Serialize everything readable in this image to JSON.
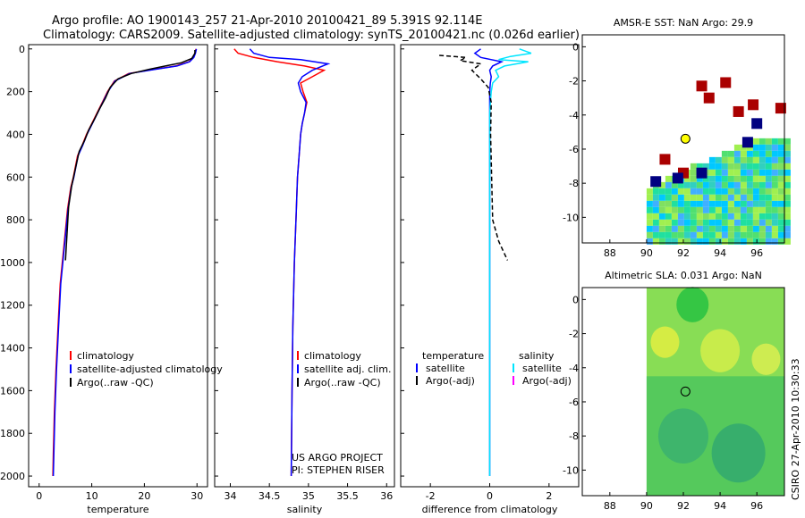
{
  "title": {
    "line1": "Argo profile: AO 1900143_257 21-Apr-2010 20100421_89 5.391S 92.114E",
    "line2": "Climatology: CARS2009. Satellite-adjusted climatology: synTS_20100421.nc (0.026d earlier)"
  },
  "credit": "CSIRO 27-Apr-2010 10:30:33",
  "project_note": [
    "US ARGO PROJECT",
    "PI: STEPHEN RISER"
  ],
  "colors": {
    "climatology": "#ff0000",
    "satellite": "#0000ff",
    "argo": "#000000",
    "sat_salinity": "#00e5ff",
    "argo_adj_salinity": "#ff00ff"
  },
  "chart_data": [
    {
      "id": "temperature",
      "type": "line",
      "xlabel": "temperature",
      "xlim": [
        -2,
        32
      ],
      "ylim": [
        2050,
        -20
      ],
      "xticks": [
        0,
        10,
        20,
        30
      ],
      "yticks": [
        0,
        200,
        400,
        600,
        800,
        1000,
        1200,
        1400,
        1600,
        1800,
        2000
      ],
      "legend": [
        "climatology",
        "satellite-adjusted climatology",
        "Argo(..raw -QC)"
      ],
      "series": [
        {
          "name": "climatology",
          "color": "#ff0000",
          "x": [
            29.8,
            29.6,
            29.3,
            28.5,
            26,
            22,
            17,
            14.3,
            13,
            12,
            11,
            10,
            9,
            8.2,
            7.3,
            6.5,
            6,
            5.4,
            4.8,
            4,
            3.6,
            3.2,
            2.9,
            2.7,
            2.6
          ],
          "y": [
            0,
            20,
            40,
            60,
            80,
            95,
            115,
            150,
            200,
            250,
            300,
            350,
            400,
            450,
            500,
            600,
            650,
            750,
            900,
            1100,
            1300,
            1500,
            1700,
            1900,
            2000
          ]
        },
        {
          "name": "satellite",
          "color": "#0000ff",
          "x": [
            29.9,
            29.7,
            29.4,
            28.6,
            26.2,
            22.2,
            17.2,
            14.4,
            13.1,
            12.1,
            11.1,
            10.1,
            9.1,
            8.3,
            7.4,
            6.6,
            6.1,
            5.5,
            4.9,
            4.1,
            3.7,
            3.3,
            3,
            2.8,
            2.7
          ],
          "y": [
            0,
            20,
            40,
            60,
            80,
            95,
            115,
            150,
            200,
            250,
            300,
            350,
            400,
            450,
            500,
            600,
            650,
            750,
            900,
            1100,
            1300,
            1500,
            1700,
            1900,
            2000
          ]
        },
        {
          "name": "argo",
          "color": "#000000",
          "x": [
            29.6,
            29.6,
            29,
            27,
            24,
            21,
            17.5,
            15,
            13.5,
            12.6,
            11.5,
            10.5,
            9.4,
            8.6,
            7.6,
            6.8,
            6.2,
            5.6,
            5
          ],
          "y": [
            5,
            20,
            45,
            65,
            80,
            95,
            115,
            140,
            180,
            230,
            280,
            330,
            380,
            430,
            480,
            570,
            640,
            740,
            990
          ]
        }
      ]
    },
    {
      "id": "salinity",
      "type": "line",
      "xlabel": "salinity",
      "xlim": [
        33.8,
        36.1
      ],
      "ylim": [
        2050,
        -20
      ],
      "xticks": [
        34,
        34.5,
        35,
        35.5,
        36
      ],
      "legend": [
        "climatology",
        "satellite adj. clim.",
        "Argo(..raw -QC)"
      ],
      "series": [
        {
          "name": "climatology",
          "color": "#ff0000",
          "x": [
            34.05,
            34.1,
            34.3,
            34.6,
            34.95,
            35.2,
            35.05,
            34.9,
            34.93,
            34.98,
            34.95,
            34.92,
            34.9,
            34.88,
            34.86,
            34.84,
            34.82,
            34.8,
            34.79,
            34.78
          ],
          "y": [
            0,
            20,
            40,
            60,
            80,
            100,
            130,
            160,
            200,
            250,
            300,
            350,
            400,
            500,
            600,
            800,
            1000,
            1300,
            1600,
            2000
          ]
        },
        {
          "name": "satellite",
          "color": "#0000ff",
          "x": [
            34.25,
            34.3,
            34.5,
            34.9,
            35.25,
            35.05,
            34.92,
            34.87,
            34.9,
            34.97,
            34.95,
            34.92,
            34.9,
            34.88,
            34.86,
            34.84,
            34.82,
            34.8,
            34.79,
            34.78
          ],
          "y": [
            0,
            20,
            40,
            50,
            70,
            100,
            130,
            160,
            200,
            250,
            300,
            350,
            400,
            500,
            600,
            800,
            1000,
            1300,
            1600,
            2000
          ]
        }
      ]
    },
    {
      "id": "difference",
      "type": "line",
      "xlabel": "difference from climatology",
      "xlim": [
        -3,
        3
      ],
      "ylim": [
        2050,
        -20
      ],
      "xticks": [
        -2,
        0,
        2
      ],
      "legend": [
        "temperature",
        "satellite",
        "Argo(-adj)",
        "salinity",
        "satellite",
        "Argo(-adj)"
      ],
      "series": [
        {
          "name": "temperature satellite",
          "color": "#0000ff",
          "x": [
            -0.3,
            -0.5,
            -0.3,
            0.4,
            0.1,
            0,
            0.05,
            0.02,
            0,
            0,
            0,
            0,
            0,
            0,
            0
          ],
          "y": [
            0,
            20,
            40,
            60,
            80,
            100,
            130,
            160,
            200,
            300,
            400,
            600,
            800,
            1200,
            2000
          ]
        },
        {
          "name": "salinity satellite",
          "color": "#00e5ff",
          "x": [
            1,
            1.4,
            0.7,
            0.3,
            1.3,
            0.5,
            0.2,
            0.3,
            0.1,
            0.05,
            0,
            0,
            0,
            0,
            0
          ],
          "y": [
            0,
            20,
            35,
            50,
            60,
            80,
            100,
            130,
            160,
            200,
            300,
            500,
            800,
            1200,
            2000
          ]
        },
        {
          "name": "temperature argo",
          "color": "#000000",
          "dash": true,
          "x": [
            -1.7,
            -0.8,
            -1,
            -0.3,
            -0.6,
            -0.3,
            -0.05,
            0.05,
            0.03,
            0.1,
            0.3,
            0.6
          ],
          "y": [
            30,
            40,
            55,
            70,
            100,
            140,
            180,
            250,
            400,
            800,
            900,
            990
          ]
        }
      ]
    }
  ],
  "maps": [
    {
      "title": "AMSR-E SST: NaN Argo: 29.9",
      "xlim": [
        86.5,
        97.5
      ],
      "ylim": [
        -11.5,
        0.7
      ],
      "xticks": [
        88,
        90,
        92,
        94,
        96
      ],
      "yticks": [
        0,
        -2,
        -4,
        -6,
        -8,
        -10
      ],
      "marker": {
        "lon": 92.114,
        "lat": -5.391
      }
    },
    {
      "title": "Altimetric SLA: 0.031 Argo: NaN",
      "xlim": [
        86.5,
        97.5
      ],
      "ylim": [
        -11.5,
        0.7
      ],
      "xticks": [
        88,
        90,
        92,
        94,
        96
      ],
      "yticks": [
        0,
        -2,
        -4,
        -6,
        -8,
        -10
      ],
      "marker": {
        "lon": 92.114,
        "lat": -5.391
      }
    }
  ]
}
